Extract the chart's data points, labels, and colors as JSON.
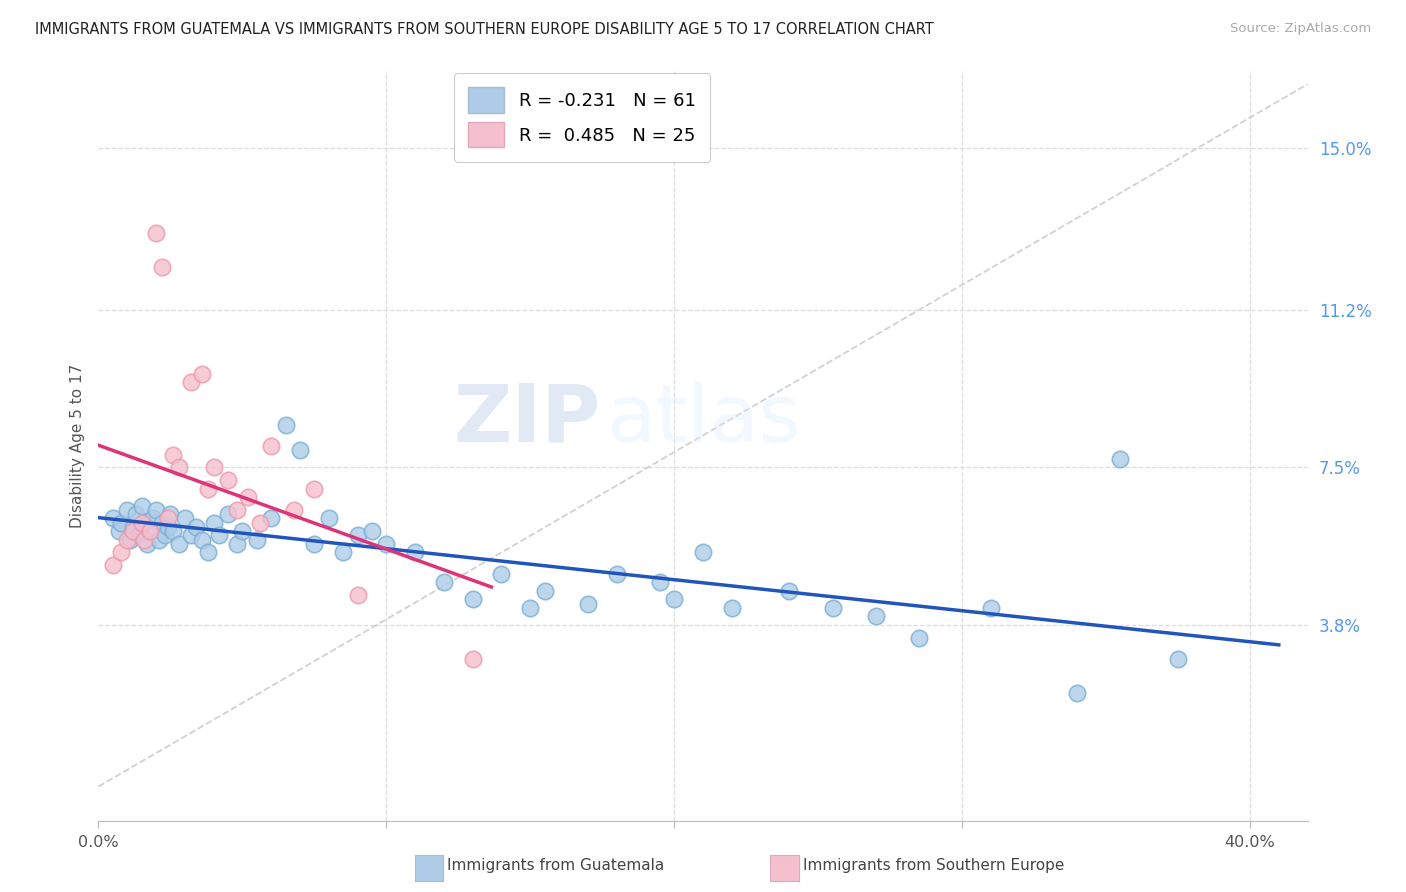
{
  "title": "IMMIGRANTS FROM GUATEMALA VS IMMIGRANTS FROM SOUTHERN EUROPE DISABILITY AGE 5 TO 17 CORRELATION CHART",
  "source": "Source: ZipAtlas.com",
  "ylabel": "Disability Age 5 to 17",
  "xlim": [
    0.0,
    0.42
  ],
  "ylim": [
    -0.008,
    0.168
  ],
  "ytick_positions": [
    0.038,
    0.075,
    0.112,
    0.15
  ],
  "ytick_labels": [
    "3.8%",
    "7.5%",
    "11.2%",
    "15.0%"
  ],
  "legend_blue_r": "R = -0.231",
  "legend_blue_n": "N = 61",
  "legend_pink_r": "R =  0.485",
  "legend_pink_n": "N = 25",
  "blue_scatter_color": "#AECCE8",
  "blue_scatter_edge": "#7BAFD4",
  "pink_scatter_color": "#F5C0CE",
  "pink_scatter_edge": "#EE99AA",
  "blue_line_color": "#2255BB",
  "pink_line_color": "#DD3377",
  "diagonal_color": "#CCCCCC",
  "watermark_zip": "ZIP",
  "watermark_atlas": "atlas",
  "background": "#FFFFFF",
  "grid_color": "#DDDDDD",
  "blue_label": "Immigrants from Guatemala",
  "pink_label": "Immigrants from Southern Europe",
  "blue_x": [
    0.005,
    0.007,
    0.008,
    0.01,
    0.011,
    0.012,
    0.013,
    0.014,
    0.015,
    0.016,
    0.017,
    0.018,
    0.019,
    0.02,
    0.021,
    0.022,
    0.023,
    0.024,
    0.025,
    0.026,
    0.028,
    0.03,
    0.032,
    0.034,
    0.036,
    0.038,
    0.04,
    0.042,
    0.045,
    0.048,
    0.05,
    0.055,
    0.06,
    0.065,
    0.07,
    0.075,
    0.08,
    0.085,
    0.09,
    0.095,
    0.1,
    0.11,
    0.12,
    0.13,
    0.14,
    0.15,
    0.155,
    0.17,
    0.18,
    0.195,
    0.2,
    0.21,
    0.22,
    0.24,
    0.255,
    0.27,
    0.285,
    0.31,
    0.34,
    0.355,
    0.375
  ],
  "blue_y": [
    0.063,
    0.06,
    0.062,
    0.065,
    0.058,
    0.061,
    0.064,
    0.059,
    0.066,
    0.062,
    0.057,
    0.06,
    0.063,
    0.065,
    0.058,
    0.062,
    0.059,
    0.061,
    0.064,
    0.06,
    0.057,
    0.063,
    0.059,
    0.061,
    0.058,
    0.055,
    0.062,
    0.059,
    0.064,
    0.057,
    0.06,
    0.058,
    0.063,
    0.085,
    0.079,
    0.057,
    0.063,
    0.055,
    0.059,
    0.06,
    0.057,
    0.055,
    0.048,
    0.044,
    0.05,
    0.042,
    0.046,
    0.043,
    0.05,
    0.048,
    0.044,
    0.055,
    0.042,
    0.046,
    0.042,
    0.04,
    0.035,
    0.042,
    0.022,
    0.077,
    0.03
  ],
  "pink_x": [
    0.005,
    0.008,
    0.01,
    0.012,
    0.015,
    0.016,
    0.018,
    0.02,
    0.022,
    0.024,
    0.026,
    0.028,
    0.032,
    0.036,
    0.038,
    0.04,
    0.045,
    0.048,
    0.052,
    0.056,
    0.06,
    0.068,
    0.075,
    0.09,
    0.13
  ],
  "pink_y": [
    0.052,
    0.055,
    0.058,
    0.06,
    0.062,
    0.058,
    0.06,
    0.13,
    0.122,
    0.063,
    0.078,
    0.075,
    0.095,
    0.097,
    0.07,
    0.075,
    0.072,
    0.065,
    0.068,
    0.062,
    0.08,
    0.065,
    0.07,
    0.045,
    0.03
  ]
}
